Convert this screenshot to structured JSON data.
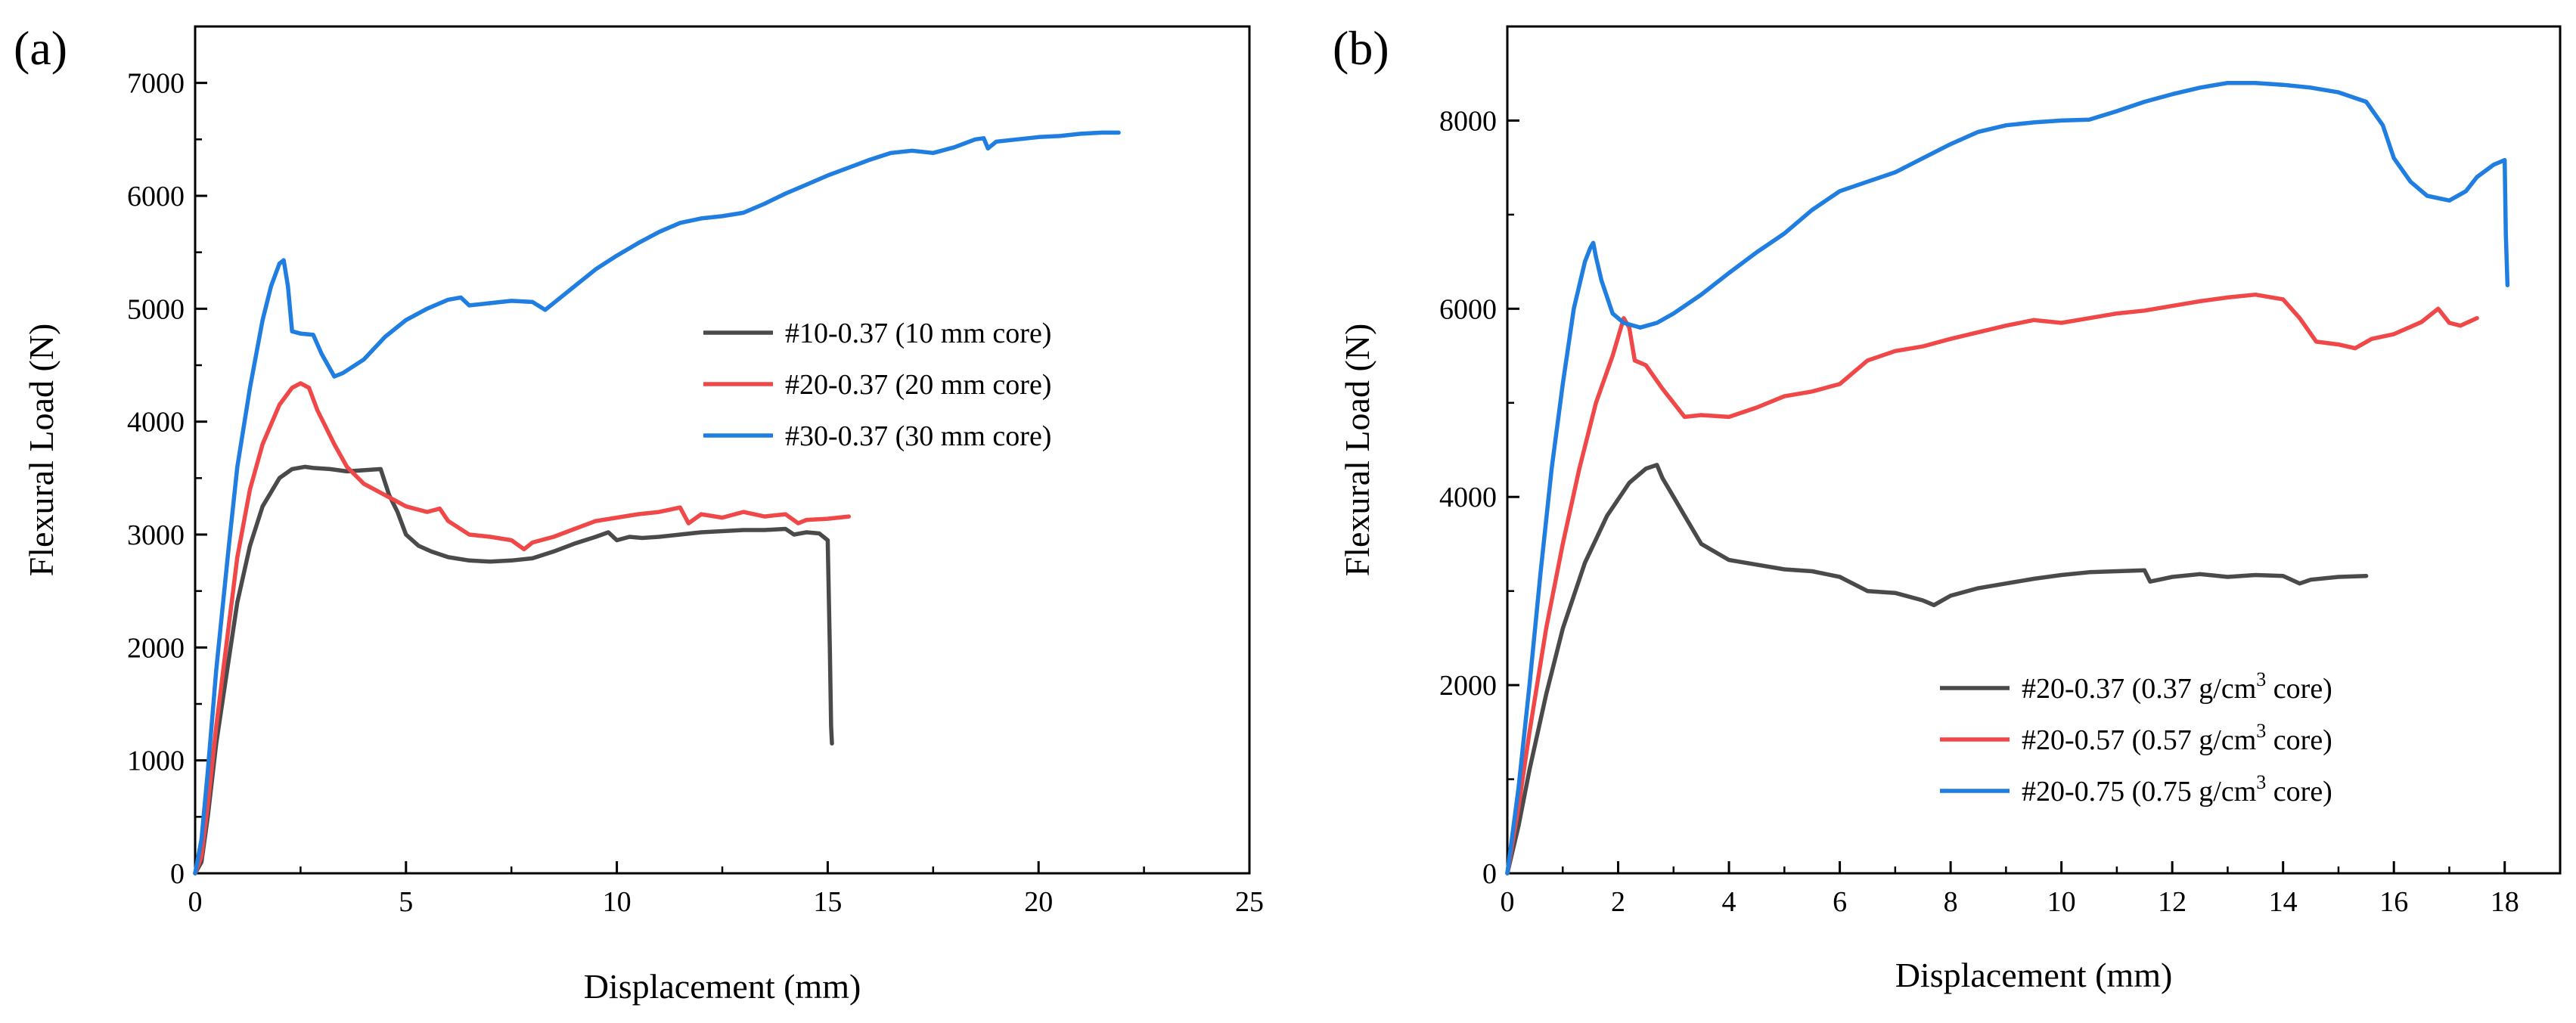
{
  "figure": {
    "panels": [
      {
        "label": "(a)"
      },
      {
        "label": "(b)"
      }
    ]
  },
  "chart_data": [
    {
      "panel": "(a)",
      "type": "line",
      "xlabel": "Displacement (mm)",
      "ylabel": "Flexural Load (N)",
      "xlim": [
        0,
        25
      ],
      "ylim": [
        0,
        7500
      ],
      "xticks": [
        0,
        5,
        10,
        15,
        20,
        25
      ],
      "yticks": [
        0,
        1000,
        2000,
        3000,
        4000,
        5000,
        6000,
        7000
      ],
      "grid": false,
      "legend_position": "center-right",
      "series": [
        {
          "name": "#10-0.37 (10 mm core)",
          "legend": {
            "pre": "#10-0.37 (10 mm core)"
          },
          "color": "#4a4a4a",
          "x": [
            0,
            0.15,
            0.3,
            0.5,
            0.8,
            1.0,
            1.3,
            1.6,
            2.0,
            2.3,
            2.6,
            2.8,
            3.2,
            3.6,
            4.0,
            4.4,
            4.6,
            4.8,
            5.0,
            5.3,
            5.6,
            6.0,
            6.5,
            7.0,
            7.5,
            8.0,
            8.5,
            9.0,
            9.5,
            9.8,
            10.0,
            10.3,
            10.6,
            11.0,
            11.5,
            12.0,
            12.5,
            13.0,
            13.5,
            14.0,
            14.2,
            14.5,
            14.8,
            15.0,
            15.05,
            15.08,
            15.1
          ],
          "values": [
            0,
            100,
            500,
            1150,
            1900,
            2400,
            2900,
            3250,
            3500,
            3580,
            3600,
            3590,
            3580,
            3560,
            3570,
            3580,
            3350,
            3200,
            3000,
            2900,
            2850,
            2800,
            2770,
            2760,
            2770,
            2790,
            2850,
            2920,
            2980,
            3020,
            2950,
            2980,
            2970,
            2980,
            3000,
            3020,
            3030,
            3040,
            3040,
            3050,
            3000,
            3020,
            3010,
            2950,
            2000,
            1300,
            1150
          ]
        },
        {
          "name": "#20-0.37 (20 mm core)",
          "legend": {
            "pre": "#20-0.37 (20 mm core)"
          },
          "color": "#f04848",
          "x": [
            0,
            0.15,
            0.3,
            0.5,
            0.8,
            1.0,
            1.3,
            1.6,
            2.0,
            2.3,
            2.5,
            2.7,
            2.9,
            3.1,
            3.3,
            3.6,
            4.0,
            4.5,
            5.0,
            5.5,
            5.8,
            6.0,
            6.5,
            7.0,
            7.5,
            7.8,
            8.0,
            8.5,
            9.0,
            9.5,
            10.0,
            10.5,
            11.0,
            11.5,
            11.7,
            12.0,
            12.5,
            13.0,
            13.5,
            14.0,
            14.3,
            14.5,
            15.0,
            15.5
          ],
          "values": [
            0,
            150,
            600,
            1300,
            2200,
            2800,
            3400,
            3800,
            4150,
            4300,
            4340,
            4300,
            4100,
            3950,
            3800,
            3600,
            3450,
            3350,
            3250,
            3200,
            3230,
            3120,
            3000,
            2980,
            2950,
            2870,
            2930,
            2980,
            3050,
            3120,
            3150,
            3180,
            3200,
            3240,
            3100,
            3180,
            3150,
            3200,
            3160,
            3180,
            3100,
            3130,
            3140,
            3160
          ]
        },
        {
          "name": "#30-0.37 (30 mm core)",
          "legend": {
            "pre": "#30-0.37 (30 mm core)"
          },
          "color": "#1f7ee0",
          "x": [
            0,
            0.15,
            0.3,
            0.5,
            0.8,
            1.0,
            1.3,
            1.6,
            1.8,
            2.0,
            2.1,
            2.2,
            2.3,
            2.5,
            2.8,
            3.0,
            3.3,
            3.5,
            4.0,
            4.5,
            5.0,
            5.5,
            6.0,
            6.3,
            6.5,
            7.0,
            7.5,
            8.0,
            8.3,
            8.5,
            9.0,
            9.5,
            10.0,
            10.5,
            11.0,
            11.5,
            12.0,
            12.5,
            13.0,
            13.5,
            14.0,
            14.5,
            15.0,
            15.5,
            16.0,
            16.5,
            17.0,
            17.5,
            18.0,
            18.5,
            18.7,
            18.8,
            19.0,
            19.5,
            20.0,
            20.5,
            21.0,
            21.5,
            21.9
          ],
          "values": [
            0,
            300,
            900,
            1800,
            2900,
            3600,
            4300,
            4900,
            5200,
            5400,
            5430,
            5200,
            4800,
            4780,
            4770,
            4600,
            4400,
            4430,
            4550,
            4750,
            4900,
            5000,
            5080,
            5100,
            5030,
            5050,
            5070,
            5060,
            4990,
            5050,
            5200,
            5350,
            5470,
            5580,
            5680,
            5760,
            5800,
            5820,
            5850,
            5930,
            6020,
            6100,
            6180,
            6250,
            6320,
            6380,
            6400,
            6380,
            6430,
            6500,
            6510,
            6420,
            6480,
            6500,
            6520,
            6530,
            6550,
            6560,
            6560
          ]
        }
      ]
    },
    {
      "panel": "(b)",
      "type": "line",
      "xlabel": "Displacement (mm)",
      "ylabel": "Flexural Load (N)",
      "xlim": [
        0,
        19
      ],
      "ylim": [
        0,
        9000
      ],
      "xticks": [
        0,
        2,
        4,
        6,
        8,
        10,
        12,
        14,
        16,
        18
      ],
      "yticks": [
        0,
        2000,
        4000,
        6000,
        8000
      ],
      "grid": false,
      "legend_position": "bottom-right",
      "series": [
        {
          "name": "#20-0.37 (0.37 g/cm3 core)",
          "legend": {
            "pre": "#20-0.37 (0.37 g/cm",
            "sup": "3",
            "post": " core)"
          },
          "color": "#4a4a4a",
          "x": [
            0,
            0.2,
            0.4,
            0.7,
            1.0,
            1.4,
            1.8,
            2.2,
            2.5,
            2.7,
            2.8,
            3.0,
            3.2,
            3.5,
            4.0,
            4.5,
            5.0,
            5.5,
            6.0,
            6.5,
            7.0,
            7.5,
            7.7,
            8.0,
            8.5,
            9.0,
            9.5,
            10.0,
            10.5,
            11.0,
            11.5,
            11.6,
            12.0,
            12.5,
            13.0,
            13.5,
            14.0,
            14.3,
            14.5,
            15.0,
            15.5
          ],
          "values": [
            0,
            500,
            1100,
            1900,
            2600,
            3300,
            3800,
            4150,
            4300,
            4340,
            4200,
            4000,
            3800,
            3500,
            3330,
            3280,
            3230,
            3210,
            3150,
            3000,
            2980,
            2900,
            2850,
            2950,
            3030,
            3080,
            3130,
            3170,
            3200,
            3210,
            3220,
            3100,
            3150,
            3180,
            3150,
            3170,
            3160,
            3080,
            3120,
            3150,
            3160
          ]
        },
        {
          "name": "#20-0.57 (0.57 g/cm3 core)",
          "legend": {
            "pre": "#20-0.57 (0.57 g/cm",
            "sup": "3",
            "post": " core)"
          },
          "color": "#f04848",
          "x": [
            0,
            0.2,
            0.4,
            0.7,
            1.0,
            1.3,
            1.6,
            1.9,
            2.1,
            2.2,
            2.3,
            2.5,
            2.8,
            3.0,
            3.2,
            3.5,
            4.0,
            4.5,
            5.0,
            5.5,
            6.0,
            6.5,
            7.0,
            7.5,
            8.0,
            8.5,
            9.0,
            9.5,
            10.0,
            10.5,
            11.0,
            11.5,
            12.0,
            12.5,
            13.0,
            13.5,
            14.0,
            14.3,
            14.6,
            15.0,
            15.3,
            15.6,
            16.0,
            16.5,
            16.8,
            17.0,
            17.2,
            17.5
          ],
          "values": [
            0,
            700,
            1500,
            2600,
            3500,
            4300,
            5000,
            5500,
            5900,
            5800,
            5450,
            5400,
            5150,
            5000,
            4850,
            4870,
            4850,
            4950,
            5070,
            5120,
            5200,
            5450,
            5550,
            5600,
            5680,
            5750,
            5820,
            5880,
            5850,
            5900,
            5950,
            5980,
            6030,
            6080,
            6120,
            6150,
            6100,
            5900,
            5650,
            5620,
            5580,
            5680,
            5730,
            5860,
            6000,
            5850,
            5820,
            5900
          ]
        },
        {
          "name": "#20-0.75 (0.75 g/cm3 core)",
          "legend": {
            "pre": "#20-0.75 (0.75 g/cm",
            "sup": "3",
            "post": " core)"
          },
          "color": "#1f7ee0",
          "x": [
            0,
            0.2,
            0.4,
            0.6,
            0.8,
            1.0,
            1.2,
            1.4,
            1.5,
            1.55,
            1.6,
            1.7,
            1.9,
            2.1,
            2.4,
            2.7,
            3.0,
            3.5,
            4.0,
            4.5,
            5.0,
            5.5,
            6.0,
            6.5,
            7.0,
            7.5,
            8.0,
            8.5,
            9.0,
            9.5,
            10.0,
            10.5,
            11.0,
            11.5,
            12.0,
            12.5,
            13.0,
            13.5,
            14.0,
            14.5,
            15.0,
            15.5,
            15.8,
            16.0,
            16.3,
            16.6,
            17.0,
            17.3,
            17.5,
            17.8,
            18.0,
            18.02,
            18.05
          ],
          "values": [
            0,
            900,
            2000,
            3200,
            4300,
            5200,
            6000,
            6500,
            6650,
            6700,
            6550,
            6300,
            5950,
            5850,
            5800,
            5850,
            5950,
            6150,
            6380,
            6600,
            6800,
            7050,
            7250,
            7350,
            7450,
            7600,
            7750,
            7880,
            7950,
            7980,
            8000,
            8010,
            8100,
            8200,
            8280,
            8350,
            8400,
            8400,
            8380,
            8350,
            8300,
            8200,
            7950,
            7600,
            7350,
            7200,
            7150,
            7250,
            7400,
            7530,
            7580,
            6800,
            6250
          ]
        }
      ]
    }
  ]
}
